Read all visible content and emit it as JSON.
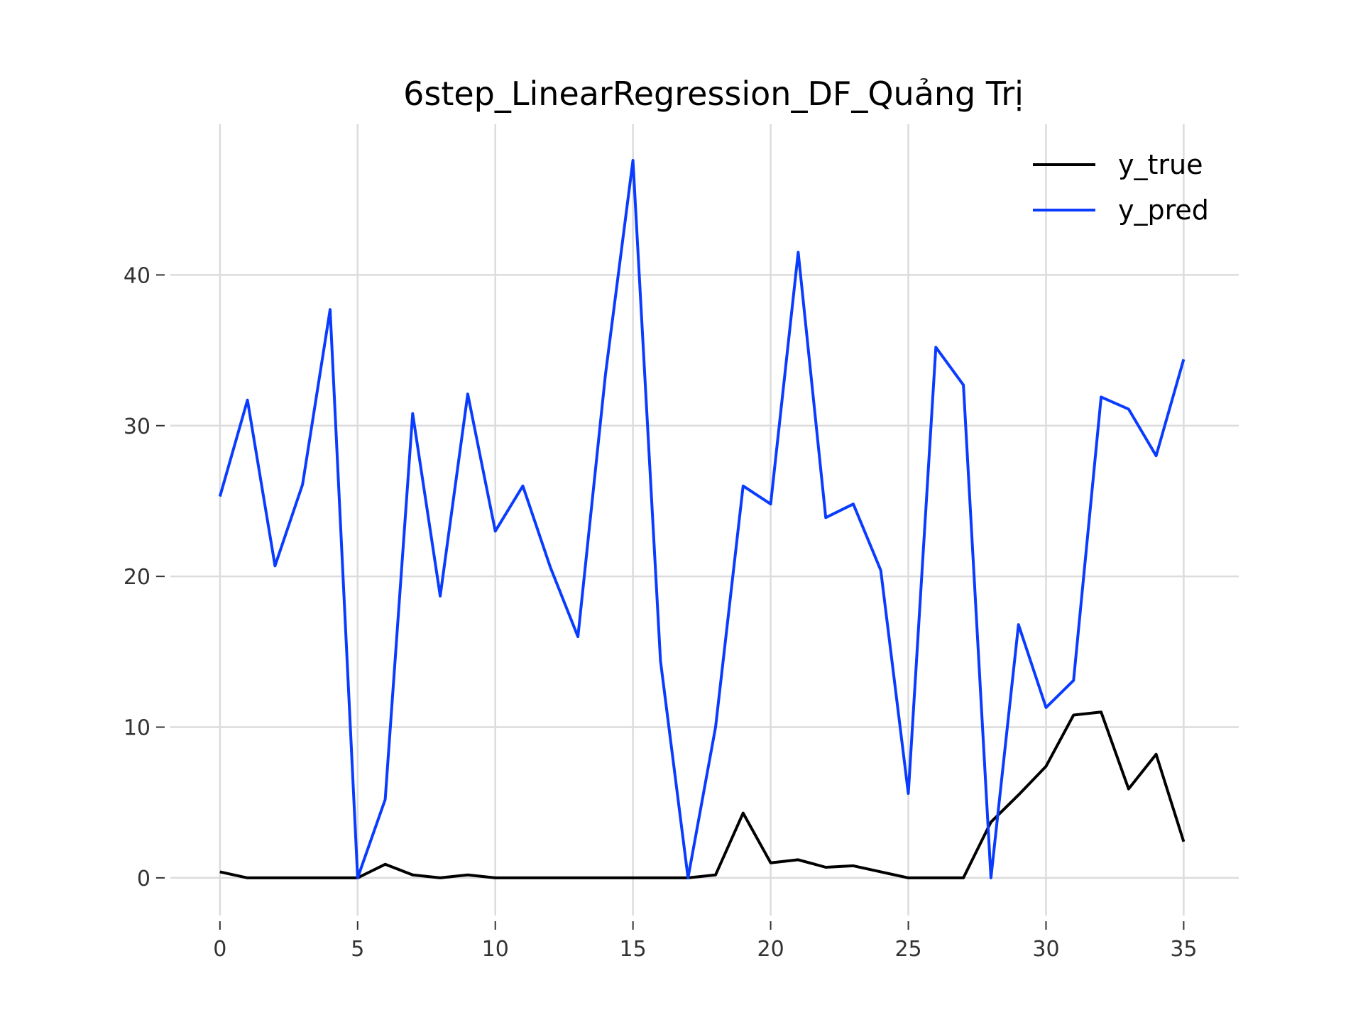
{
  "chart_data": {
    "type": "line",
    "title": "6step_LinearRegression_DF_Quảng Trị",
    "xlabel": "",
    "ylabel": "",
    "xlim": [
      -1.8,
      37
    ],
    "ylim": [
      -2.5,
      50
    ],
    "x_ticks": [
      0,
      5,
      10,
      15,
      20,
      25,
      30,
      35
    ],
    "y_ticks": [
      0,
      10,
      20,
      30,
      40
    ],
    "grid": true,
    "legend_position": "top-right",
    "x": [
      0,
      1,
      2,
      3,
      4,
      5,
      6,
      7,
      8,
      9,
      10,
      11,
      12,
      13,
      14,
      15,
      16,
      17,
      18,
      19,
      20,
      21,
      22,
      23,
      24,
      25,
      26,
      27,
      28,
      29,
      30,
      31,
      32,
      33,
      34,
      35
    ],
    "series": [
      {
        "name": "y_true",
        "color": "#000000",
        "values": [
          0.4,
          0,
          0,
          0,
          0,
          0,
          0.9,
          0.2,
          0,
          0.2,
          0,
          0,
          0,
          0,
          0,
          0,
          0,
          0,
          0.2,
          4.3,
          1.0,
          1.2,
          0.7,
          0.8,
          0.4,
          0,
          0,
          0,
          3.7,
          5.5,
          7.4,
          10.8,
          11.0,
          5.9,
          8.2,
          2.4
        ]
      },
      {
        "name": "y_pred",
        "color": "#0a3cff",
        "values": [
          25.3,
          31.7,
          20.7,
          26.1,
          37.7,
          0,
          5.2,
          30.8,
          18.7,
          32.1,
          23.0,
          26.0,
          20.6,
          16.0,
          33.4,
          47.6,
          14.4,
          0,
          10.0,
          26.0,
          24.8,
          41.5,
          23.9,
          24.8,
          20.4,
          5.6,
          35.2,
          32.7,
          0,
          16.8,
          11.3,
          13.1,
          31.9,
          31.1,
          28.0,
          34.4
        ]
      }
    ]
  }
}
